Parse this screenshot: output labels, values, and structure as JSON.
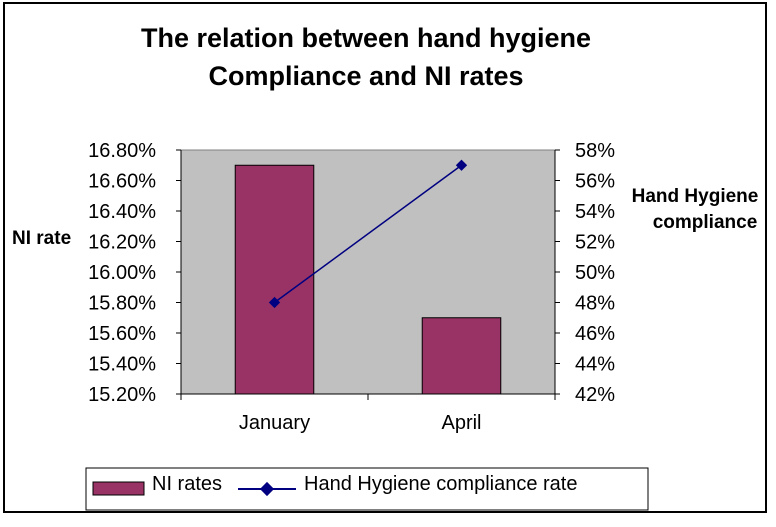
{
  "chart_data": {
    "type": "bar",
    "title": [
      "The relation between hand hygiene",
      "Compliance and NI rates"
    ],
    "categories": [
      "January",
      "April"
    ],
    "ylabel": "NI rate",
    "y2label": [
      "Hand Hygiene",
      "compliance"
    ],
    "ylim": [
      0.152,
      0.168
    ],
    "y2lim": [
      42,
      58
    ],
    "y_ticks": [
      "15.20%",
      "15.40%",
      "15.60%",
      "15.80%",
      "16.00%",
      "16.20%",
      "16.40%",
      "16.60%",
      "16.80%"
    ],
    "y2_ticks": [
      "42%",
      "44%",
      "46%",
      "48%",
      "50%",
      "52%",
      "54%",
      "56%",
      "58%"
    ],
    "series": [
      {
        "name": "NI rates",
        "type": "bar",
        "axis": "left",
        "values": [
          0.167,
          0.157
        ]
      },
      {
        "name": "Hand Hygiene compliance rate",
        "type": "line",
        "axis": "right",
        "values": [
          48,
          57
        ]
      }
    ],
    "grid": false,
    "legend": "bottom",
    "colors": {
      "bar": "#993366",
      "line": "#000080",
      "plot_bg": "#c0c0c0"
    }
  }
}
